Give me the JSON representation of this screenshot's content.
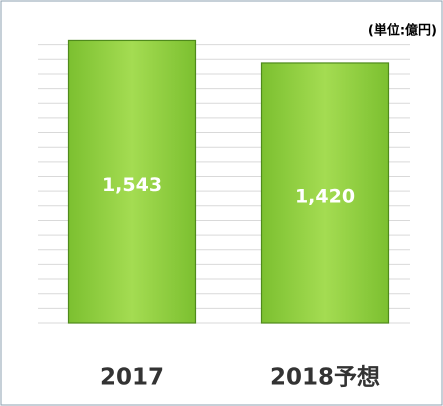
{
  "chart_data": {
    "type": "bar",
    "unit_label": "(単位:億円)",
    "categories": [
      "2017",
      "2018予想"
    ],
    "values": [
      1543,
      1420
    ],
    "value_labels": [
      "1,543",
      "1,420"
    ],
    "color": "#8fd13a",
    "ylim": [
      0,
      1600
    ],
    "yticks": [
      0,
      80,
      160,
      240,
      320,
      400,
      480,
      560,
      640,
      720,
      800,
      880,
      960,
      1040,
      1120,
      1200,
      1280,
      1360,
      1440,
      1520
    ],
    "grid": true
  }
}
